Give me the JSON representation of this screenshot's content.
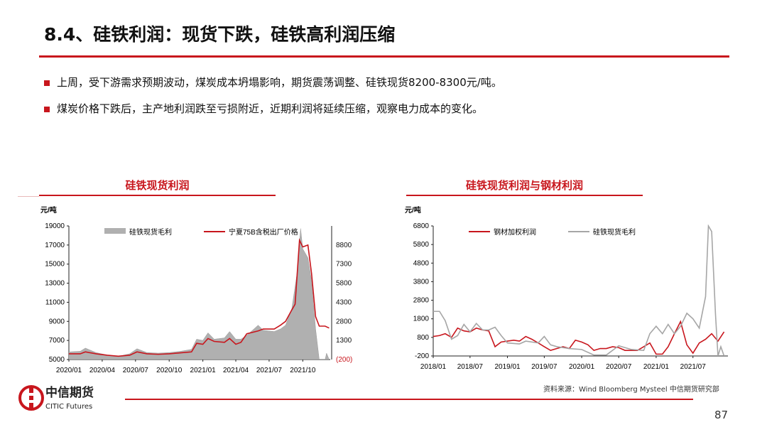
{
  "header": {
    "title": "8.4、硅铁利润：现货下跌，硅铁高利润压缩"
  },
  "bullets": [
    "上周，受下游需求预期波动，煤炭成本坍塌影响，期货震荡调整、硅铁现货8200-8300元/吨。",
    "煤炭价格下跌后，主产地利润跌至亏损附近，近期利润将延续压缩，观察电力成本的变化。"
  ],
  "colors": {
    "accent": "#c8161d",
    "gray": "#a6a6a6"
  },
  "chart_data": [
    {
      "type": "area+line",
      "title": "硅铁现货利润",
      "unit": "元/吨",
      "ylim": [
        5000,
        19000
      ],
      "yticks": [
        "5000",
        "7000",
        "9000",
        "11000",
        "13000",
        "15000",
        "17000",
        "19000"
      ],
      "y2lim": [
        -200,
        10300
      ],
      "y2ticks": [
        "(200)",
        "1300",
        "2800",
        "4300",
        "5800",
        "7300",
        "8800"
      ],
      "xlim": [
        "2020-01-01",
        "2021-12-15"
      ],
      "xticks": [
        "2020/01",
        "2020/04",
        "2020/07",
        "2020/10",
        "2021/01",
        "2021/04",
        "2021/07",
        "2021/10"
      ],
      "legend": "top",
      "series": [
        {
          "name": "硅铁现货毛利",
          "kind": "area",
          "axis": "right",
          "color": "#b0b0b0",
          "x": [
            "2020-01-01",
            "2020-02-01",
            "2020-02-15",
            "2020-03-15",
            "2020-04-15",
            "2020-05-15",
            "2020-06-15",
            "2020-07-05",
            "2020-08-01",
            "2020-09-01",
            "2020-10-01",
            "2020-11-01",
            "2020-12-01",
            "2020-12-15",
            "2021-01-01",
            "2021-01-15",
            "2021-02-01",
            "2021-03-01",
            "2021-03-15",
            "2021-04-01",
            "2021-04-15",
            "2021-05-01",
            "2021-06-01",
            "2021-06-15",
            "2021-07-15",
            "2021-08-01",
            "2021-08-15",
            "2021-09-01",
            "2021-09-15",
            "2021-09-25",
            "2021-10-01",
            "2021-10-15",
            "2021-10-25",
            "2021-11-05",
            "2021-11-15",
            "2021-12-01",
            "2021-12-05",
            "2021-12-12"
          ],
          "values": [
            400,
            450,
            700,
            350,
            150,
            50,
            250,
            650,
            350,
            300,
            350,
            450,
            600,
            1400,
            1300,
            1900,
            1400,
            1500,
            2000,
            1400,
            1400,
            1700,
            2500,
            2100,
            2000,
            2200,
            2500,
            3800,
            6500,
            10100,
            8500,
            7800,
            6000,
            2200,
            -200,
            -200,
            300,
            -200
          ]
        },
        {
          "name": "宁夏75B含税出厂价格",
          "kind": "line",
          "axis": "left",
          "color": "#c8161d",
          "x": [
            "2020-01-01",
            "2020-02-01",
            "2020-02-15",
            "2020-03-15",
            "2020-04-15",
            "2020-05-15",
            "2020-06-15",
            "2020-07-05",
            "2020-08-01",
            "2020-09-01",
            "2020-10-01",
            "2020-11-01",
            "2020-12-01",
            "2020-12-15",
            "2021-01-01",
            "2021-01-15",
            "2021-02-01",
            "2021-03-01",
            "2021-03-15",
            "2021-04-01",
            "2021-04-15",
            "2021-05-01",
            "2021-06-01",
            "2021-06-15",
            "2021-07-15",
            "2021-08-01",
            "2021-08-15",
            "2021-09-01",
            "2021-09-10",
            "2021-09-22",
            "2021-10-01",
            "2021-10-15",
            "2021-10-25",
            "2021-11-05",
            "2021-11-15",
            "2021-12-01",
            "2021-12-12"
          ],
          "values": [
            5600,
            5600,
            5800,
            5600,
            5450,
            5350,
            5450,
            5800,
            5600,
            5550,
            5600,
            5700,
            5800,
            6700,
            6600,
            7200,
            6900,
            6800,
            7200,
            6600,
            6800,
            7700,
            8000,
            8200,
            8200,
            8600,
            9000,
            10200,
            10800,
            17500,
            16800,
            17000,
            14000,
            9500,
            8500,
            8500,
            8300
          ]
        }
      ]
    },
    {
      "type": "line",
      "title": "硅铁现货利润与钢材利润",
      "unit": "元/吨",
      "ylim": [
        -200,
        6800
      ],
      "yticks": [
        "-200",
        "800",
        "1800",
        "2800",
        "3800",
        "4800",
        "5800",
        "6800"
      ],
      "xlim": [
        "2018-01-01",
        "2021-12-20"
      ],
      "xticks": [
        "2018/01",
        "2018/07",
        "2019/01",
        "2019/07",
        "2020/01",
        "2020/07",
        "2021/01",
        "2021/07"
      ],
      "legend": "top",
      "series": [
        {
          "name": "钢材加权利润",
          "color": "#c8161d",
          "x": [
            "2018-01-01",
            "2018-02-01",
            "2018-03-01",
            "2018-04-01",
            "2018-05-01",
            "2018-06-01",
            "2018-07-01",
            "2018-08-01",
            "2018-09-01",
            "2018-10-01",
            "2018-11-01",
            "2018-12-01",
            "2019-01-01",
            "2019-02-01",
            "2019-03-01",
            "2019-04-01",
            "2019-05-01",
            "2019-06-01",
            "2019-07-01",
            "2019-08-01",
            "2019-09-01",
            "2019-10-01",
            "2019-11-01",
            "2019-12-01",
            "2020-01-01",
            "2020-02-01",
            "2020-03-01",
            "2020-04-01",
            "2020-05-01",
            "2020-06-01",
            "2020-07-01",
            "2020-08-01",
            "2020-09-01",
            "2020-10-01",
            "2020-11-01",
            "2020-12-01",
            "2021-01-01",
            "2021-02-01",
            "2021-03-01",
            "2021-04-01",
            "2021-05-01",
            "2021-06-01",
            "2021-07-01",
            "2021-08-01",
            "2021-09-01",
            "2021-10-01",
            "2021-11-01",
            "2021-12-01"
          ],
          "values": [
            850,
            900,
            1000,
            800,
            1300,
            1150,
            1100,
            1300,
            1200,
            1150,
            300,
            550,
            600,
            650,
            600,
            850,
            700,
            500,
            300,
            100,
            200,
            300,
            200,
            650,
            550,
            400,
            100,
            200,
            200,
            300,
            250,
            100,
            100,
            100,
            300,
            500,
            -100,
            -100,
            300,
            1000,
            1650,
            400,
            -50,
            500,
            700,
            1000,
            600,
            1100
          ]
        },
        {
          "name": "硅铁现货毛利",
          "color": "#a6a6a6",
          "x": [
            "2018-01-01",
            "2018-02-01",
            "2018-03-01",
            "2018-04-01",
            "2018-05-01",
            "2018-06-01",
            "2018-07-01",
            "2018-08-01",
            "2018-09-01",
            "2018-10-01",
            "2018-11-01",
            "2018-12-01",
            "2019-01-01",
            "2019-03-01",
            "2019-04-01",
            "2019-06-01",
            "2019-07-01",
            "2019-08-01",
            "2019-09-01",
            "2019-11-01",
            "2020-01-01",
            "2020-03-01",
            "2020-05-01",
            "2020-07-01",
            "2020-09-01",
            "2020-11-01",
            "2020-12-01",
            "2021-01-01",
            "2021-02-01",
            "2021-03-01",
            "2021-04-01",
            "2021-05-01",
            "2021-06-01",
            "2021-07-01",
            "2021-08-01",
            "2021-09-01",
            "2021-09-15",
            "2021-10-01",
            "2021-10-20",
            "2021-11-01",
            "2021-11-15",
            "2021-12-01"
          ],
          "values": [
            2200,
            2200,
            1700,
            700,
            900,
            1500,
            1100,
            1550,
            1200,
            1200,
            1350,
            900,
            500,
            450,
            600,
            500,
            850,
            400,
            300,
            200,
            150,
            -150,
            -150,
            350,
            150,
            100,
            1000,
            1400,
            1000,
            1500,
            1000,
            1400,
            2100,
            1800,
            1300,
            3000,
            6800,
            6500,
            2000,
            -200,
            300,
            -200
          ]
        }
      ]
    }
  ],
  "footer": {
    "logo_cn": "中信期货",
    "logo_en": "CITIC Futures",
    "source": "资料来源：Wind Bloomberg Mysteel 中信期货研究部",
    "page": "87"
  }
}
